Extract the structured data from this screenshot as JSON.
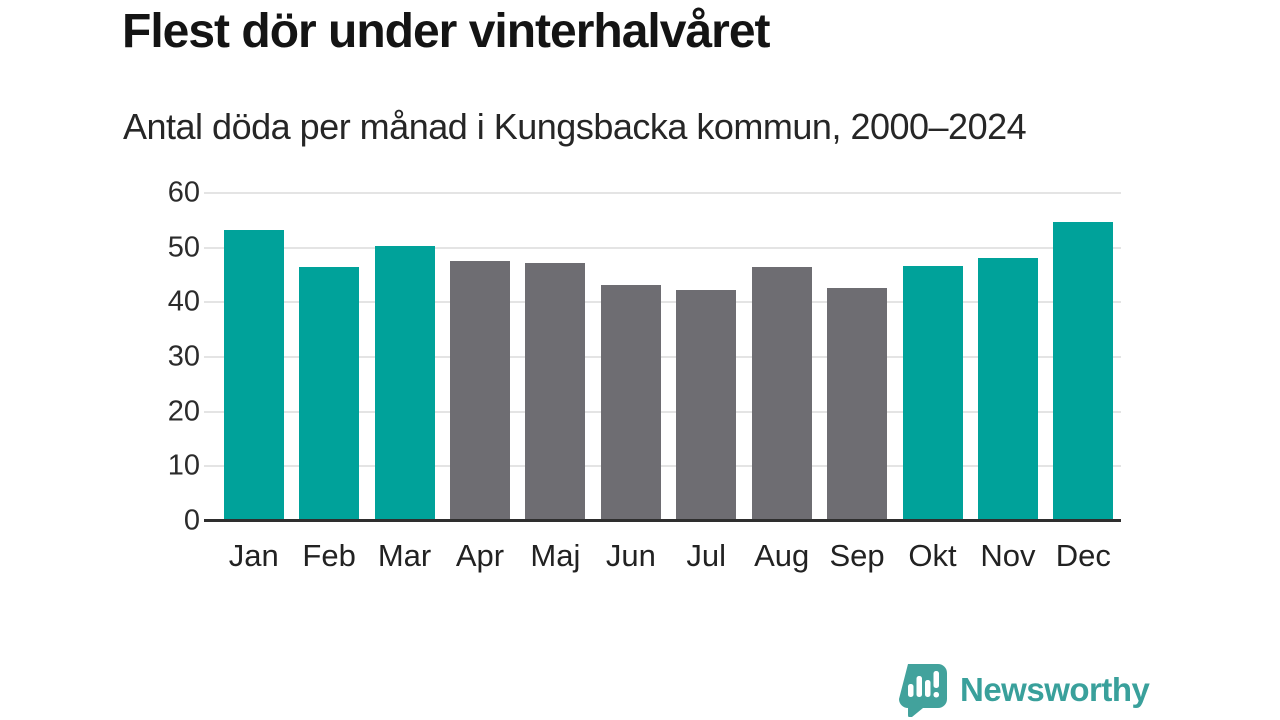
{
  "header": {
    "title": "Flest dör under vinterhalvåret",
    "subtitle": "Antal döda per månad i Kungsbacka kommun, 2000–2024"
  },
  "chart_data": {
    "type": "bar",
    "title": "Flest dör under vinterhalvåret",
    "subtitle": "Antal döda per månad i Kungsbacka kommun, 2000–2024",
    "categories": [
      "Jan",
      "Feb",
      "Mar",
      "Apr",
      "Maj",
      "Jun",
      "Jul",
      "Aug",
      "Sep",
      "Okt",
      "Nov",
      "Dec"
    ],
    "values": [
      53.2,
      46.4,
      50.3,
      47.5,
      47.2,
      43.2,
      42.3,
      46.4,
      42.7,
      46.7,
      48.2,
      54.7
    ],
    "highlighted": [
      true,
      true,
      true,
      false,
      false,
      false,
      false,
      false,
      false,
      true,
      true,
      true
    ],
    "xlabel": "",
    "ylabel": "",
    "ylim": [
      0,
      60
    ],
    "yticks": [
      0,
      10,
      20,
      30,
      40,
      50,
      60
    ],
    "grid": true,
    "legend": false,
    "colors": {
      "highlight": "#00a29a",
      "default": "#6e6d72",
      "gridline": "#e4e4e4",
      "baseline": "#2e2e2e"
    }
  },
  "footer": {
    "brand": "Newsworthy",
    "logo_icon": "newsworthy-speech-bubble-bar-chart-icon",
    "brand_color": "#39a09b",
    "logo_fill": "#42a29c"
  }
}
